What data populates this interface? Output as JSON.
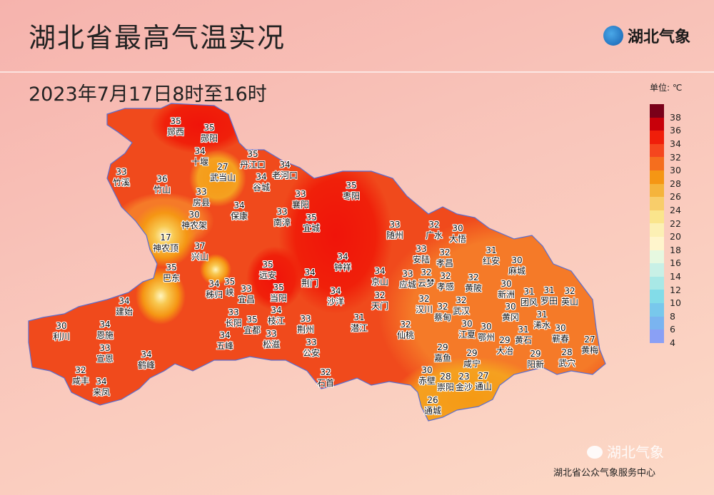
{
  "title": "湖北省最高气温实况",
  "subtitle": "2023年7月17日8时至16时",
  "logo": "湖北气象",
  "unit": "单位: ℃",
  "legend": {
    "labels": [
      "38",
      "36",
      "34",
      "32",
      "30",
      "28",
      "26",
      "24",
      "22",
      "20",
      "18",
      "16",
      "14",
      "12",
      "10",
      "8",
      "6",
      "4"
    ],
    "colors": [
      "#7a0019",
      "#c8000a",
      "#f01e0a",
      "#f5461e",
      "#f56e1e",
      "#f59614",
      "#f5b43c",
      "#f8cd6a",
      "#fae58c",
      "#fcf0b4",
      "#fff5cc",
      "#e6f8e0",
      "#c8f0e6",
      "#a8e8e6",
      "#82dce8",
      "#78c8ec",
      "#7ab4f0",
      "#8aa0f5"
    ]
  },
  "stations": [
    {
      "n": "郧西",
      "v": "35"
    },
    {
      "n": "郧阳",
      "v": "35"
    },
    {
      "n": "十堰",
      "v": "34"
    },
    {
      "n": "武当山",
      "v": "27"
    },
    {
      "n": "丹江口",
      "v": "35"
    },
    {
      "n": "老河口",
      "v": "34"
    },
    {
      "n": "谷城",
      "v": "34"
    },
    {
      "n": "竹溪",
      "v": "33"
    },
    {
      "n": "竹山",
      "v": "36"
    },
    {
      "n": "房县",
      "v": "33"
    },
    {
      "n": "保康",
      "v": "34"
    },
    {
      "n": "神农架",
      "v": "30"
    },
    {
      "n": "襄阳",
      "v": "33"
    },
    {
      "n": "南漳",
      "v": "33"
    },
    {
      "n": "宜城",
      "v": "35"
    },
    {
      "n": "枣阳",
      "v": "35"
    },
    {
      "n": "神农顶",
      "v": "17"
    },
    {
      "n": "兴山",
      "v": "37"
    },
    {
      "n": "巴东",
      "v": "35"
    },
    {
      "n": "秭归",
      "v": "34"
    },
    {
      "n": "峡",
      "v": "35"
    },
    {
      "n": "宜昌",
      "v": "33"
    },
    {
      "n": "远安",
      "v": "35"
    },
    {
      "n": "当阳",
      "v": "35"
    },
    {
      "n": "长阳",
      "v": "33"
    },
    {
      "n": "宜都",
      "v": "35"
    },
    {
      "n": "枝江",
      "v": "34"
    },
    {
      "n": "松滋",
      "v": "33"
    },
    {
      "n": "五峰",
      "v": "34"
    },
    {
      "n": "荆门",
      "v": "34"
    },
    {
      "n": "钟祥",
      "v": "34"
    },
    {
      "n": "沙洋",
      "v": "34"
    },
    {
      "n": "荆州",
      "v": "33"
    },
    {
      "n": "公安",
      "v": "33"
    },
    {
      "n": "石首",
      "v": "32"
    },
    {
      "n": "建始",
      "v": "34"
    },
    {
      "n": "利川",
      "v": "30"
    },
    {
      "n": "恩施",
      "v": "34"
    },
    {
      "n": "宣恩",
      "v": "33"
    },
    {
      "n": "鹤峰",
      "v": "34"
    },
    {
      "n": "咸丰",
      "v": "32"
    },
    {
      "n": "来凤",
      "v": "34"
    },
    {
      "n": "随州",
      "v": "33"
    },
    {
      "n": "广水",
      "v": "32"
    },
    {
      "n": "大悟",
      "v": "30"
    },
    {
      "n": "安陆",
      "v": "33"
    },
    {
      "n": "孝昌",
      "v": "32"
    },
    {
      "n": "应城",
      "v": "33"
    },
    {
      "n": "云梦",
      "v": "32"
    },
    {
      "n": "孝感",
      "v": "32"
    },
    {
      "n": "京山",
      "v": "34"
    },
    {
      "n": "天门",
      "v": "32"
    },
    {
      "n": "潜江",
      "v": "31"
    },
    {
      "n": "仙桃",
      "v": "32"
    },
    {
      "n": "汉川",
      "v": "32"
    },
    {
      "n": "武汉",
      "v": "32"
    },
    {
      "n": "蔡甸",
      "v": "32"
    },
    {
      "n": "黄陂",
      "v": "32"
    },
    {
      "n": "红安",
      "v": "31"
    },
    {
      "n": "麻城",
      "v": "30"
    },
    {
      "n": "新洲",
      "v": "30"
    },
    {
      "n": "团风",
      "v": "31"
    },
    {
      "n": "黄冈",
      "v": "30"
    },
    {
      "n": "浠水",
      "v": "31"
    },
    {
      "n": "黄石",
      "v": "31"
    },
    {
      "n": "大冶",
      "v": "29"
    },
    {
      "n": "罗田",
      "v": "31"
    },
    {
      "n": "英山",
      "v": "32"
    },
    {
      "n": "蕲春",
      "v": "30"
    },
    {
      "n": "黄梅",
      "v": "27"
    },
    {
      "n": "武穴",
      "v": "28"
    },
    {
      "n": "阳新",
      "v": "29"
    },
    {
      "n": "江夏",
      "v": "30"
    },
    {
      "n": "鄂州",
      "v": "30"
    },
    {
      "n": "嘉鱼",
      "v": "29"
    },
    {
      "n": "赤壁",
      "v": "30"
    },
    {
      "n": "咸宁",
      "v": "29"
    },
    {
      "n": "崇阳",
      "v": "28"
    },
    {
      "n": "金沙",
      "v": "23"
    },
    {
      "n": "通山",
      "v": "27"
    },
    {
      "n": "通城",
      "v": "26"
    }
  ],
  "watermark": "湖北气象",
  "footer": "湖北省公众气象服务中心"
}
